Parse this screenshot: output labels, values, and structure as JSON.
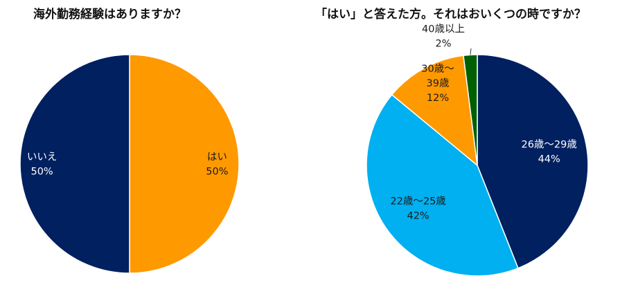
{
  "chart_data": [
    {
      "type": "pie",
      "title": "海外勤務経験はありますか？",
      "slices": [
        {
          "label": "はい",
          "value": 50,
          "value_label": "50%",
          "color": "#FF9900",
          "text_color": "#1a1a1a"
        },
        {
          "label": "いいえ",
          "value": 50,
          "value_label": "50%",
          "color": "#002060",
          "text_color": "#ffffff"
        }
      ]
    },
    {
      "type": "pie",
      "title": "「はい」と答えた方。それはおいくつの時ですか？",
      "slices": [
        {
          "label": "26歳〜29歳",
          "value": 44,
          "value_label": "44%",
          "color": "#002060",
          "text_color": "#ffffff"
        },
        {
          "label": "22歳〜25歳",
          "value": 42,
          "value_label": "42%",
          "color": "#00B0F0",
          "text_color": "#1a1a1a"
        },
        {
          "label": "30歳〜|39歳",
          "value": 12,
          "value_label": "12%",
          "color": "#FF9900",
          "text_color": "#1a1a1a"
        },
        {
          "label": "40歳以上",
          "value": 2,
          "value_label": "2%",
          "color": "#006000",
          "text_color": "#1a1a1a"
        }
      ]
    }
  ]
}
